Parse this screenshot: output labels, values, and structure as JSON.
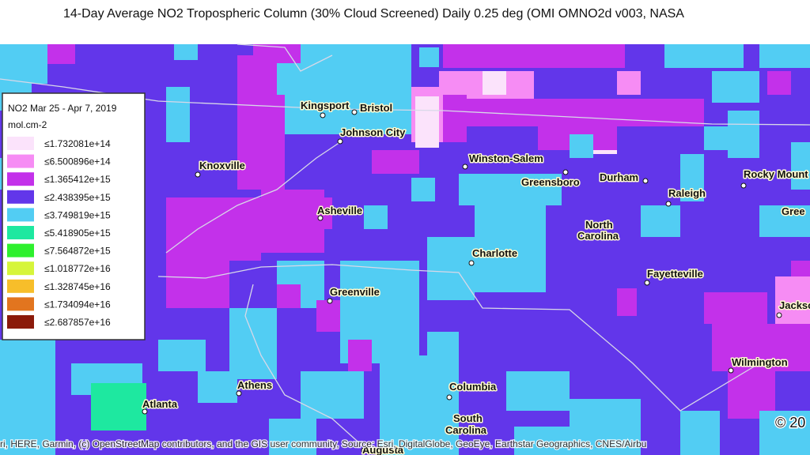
{
  "title": "14-Day Average NO2 Tropospheric Column (30% Cloud Screened) Daily 0.25 deg (OMI OMNO2d v003, NASA",
  "legend": {
    "title": "NO2 Mar 25 - Apr 7, 2019",
    "unit": "mol.cm-2",
    "items": [
      {
        "label": "≤1.732081e+14",
        "color": "#fbe3fb"
      },
      {
        "label": "≤6.500896e+14",
        "color": "#f68cf4"
      },
      {
        "label": "≤1.365412e+15",
        "color": "#c331ea"
      },
      {
        "label": "≤2.438395e+15",
        "color": "#6236ea"
      },
      {
        "label": "≤3.749819e+15",
        "color": "#52cdf3"
      },
      {
        "label": "≤5.418905e+15",
        "color": "#1ee8a0"
      },
      {
        "label": "≤7.564872e+15",
        "color": "#2ef02e"
      },
      {
        "label": "≤1.018772e+16",
        "color": "#d6f53a"
      },
      {
        "label": "≤1.328745e+16",
        "color": "#f7be2a"
      },
      {
        "label": "≤1.734094e+16",
        "color": "#e2751f"
      },
      {
        "label": "≤2.687857e+16",
        "color": "#8b1a0a"
      }
    ]
  },
  "places": [
    "Kingsport",
    "Bristol",
    "Johnson City",
    "Knoxville",
    "Winston-Salem",
    "Greensboro",
    "Durham",
    "Raleigh",
    "Rocky Mount",
    "Asheville",
    "North",
    "Carolina",
    "Gree",
    "Charlotte",
    "Fayetteville",
    "Greenville",
    "Jackso",
    "Wilmington",
    "Athens",
    "Atlanta",
    "Columbia",
    "South",
    "Carolina",
    "Augusta"
  ],
  "attribution": "ri, HERE, Garmin, (c) OpenStreetMap contributors, and the GIS user community, Source: Esri, DigitalGlobe, GeoEye, Earthstar Geographics, CNES/Airbu",
  "copyright": "© 20"
}
